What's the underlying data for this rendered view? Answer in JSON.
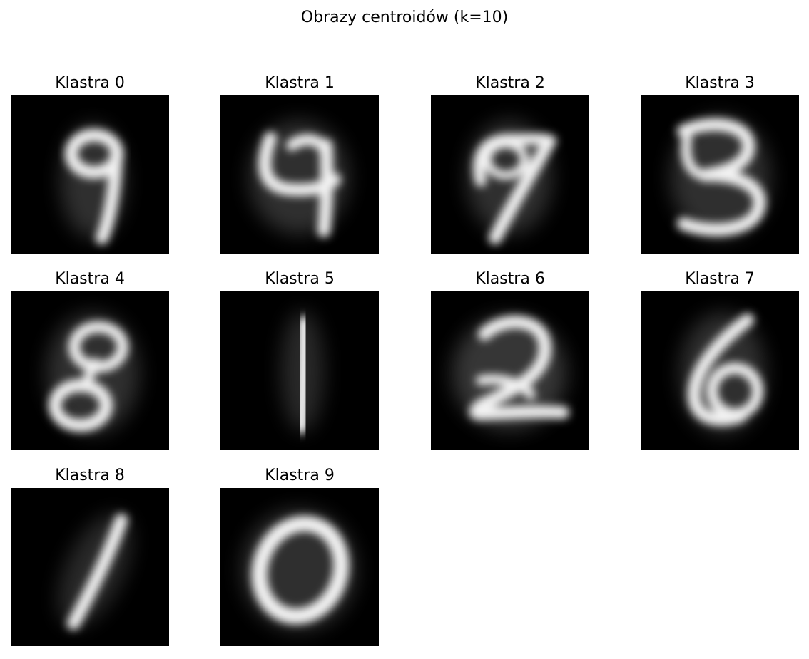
{
  "figure": {
    "title": "Obrazy centroidów (k=10)"
  },
  "panels": [
    {
      "title": "Klastra 0",
      "depicts": "digit-9"
    },
    {
      "title": "Klastra 1",
      "depicts": "digit-4"
    },
    {
      "title": "Klastra 2",
      "depicts": "digit-7"
    },
    {
      "title": "Klastra 3",
      "depicts": "digit-3"
    },
    {
      "title": "Klastra 4",
      "depicts": "digit-8"
    },
    {
      "title": "Klastra 5",
      "depicts": "digit-1"
    },
    {
      "title": "Klastra 6",
      "depicts": "digit-2"
    },
    {
      "title": "Klastra 7",
      "depicts": "digit-6"
    },
    {
      "title": "Klastra 8",
      "depicts": "digit-1"
    },
    {
      "title": "Klastra 9",
      "depicts": "digit-0"
    }
  ],
  "colors": {
    "image_background": "#000000",
    "stroke": "#f2f2f2",
    "page_background": "#ffffff"
  }
}
